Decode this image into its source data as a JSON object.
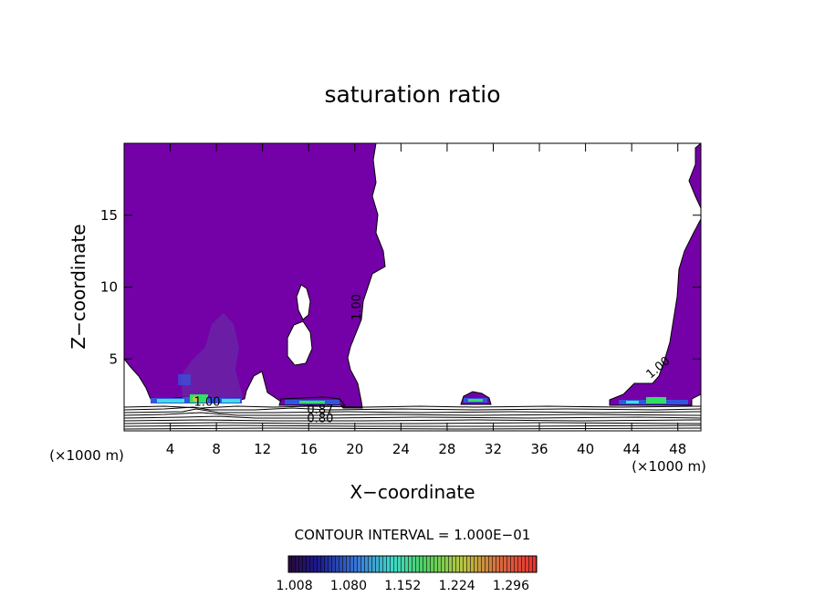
{
  "chart_data": {
    "type": "heatmap",
    "title": "saturation ratio",
    "xlabel": "X−coordinate",
    "ylabel": "Z−coordinate",
    "x_unit_left": "(×1000 m)",
    "x_unit_right": "(×1000 m)",
    "xlim": [
      0,
      50
    ],
    "ylim": [
      0,
      20
    ],
    "x_ticks": [
      4,
      8,
      12,
      16,
      20,
      24,
      28,
      32,
      36,
      40,
      44,
      48
    ],
    "y_ticks": [
      5,
      10,
      15
    ],
    "contour_interval_label": "CONTOUR INTERVAL = 1.000E−01",
    "colorbar": {
      "range": [
        1.0,
        1.33
      ],
      "ticks": [
        "1.008",
        "1.080",
        "1.152",
        "1.224",
        "1.296"
      ]
    },
    "contour_labels": [
      {
        "text": "1.00",
        "x": 20.5,
        "z": 8.6,
        "rotate": -90
      },
      {
        "text": "1.00",
        "x": 46.5,
        "z": 4.2,
        "rotate": -40
      },
      {
        "text": "1.00",
        "x": 7.2,
        "z": 1.75,
        "rotate": 0
      },
      {
        "text": "0.87",
        "x": 17.0,
        "z": 1.2,
        "rotate": 0
      },
      {
        "text": "0.80",
        "x": 17.0,
        "z": 0.6,
        "rotate": 0
      }
    ],
    "colors": {
      "saturated_region": "#7400a8",
      "purple_dark": "#6a22a6",
      "blue": "#3355dd",
      "cyan": "#40e0e0",
      "green": "#33dd66",
      "yellow": "#d8c038",
      "contour_line": "#000000"
    }
  }
}
